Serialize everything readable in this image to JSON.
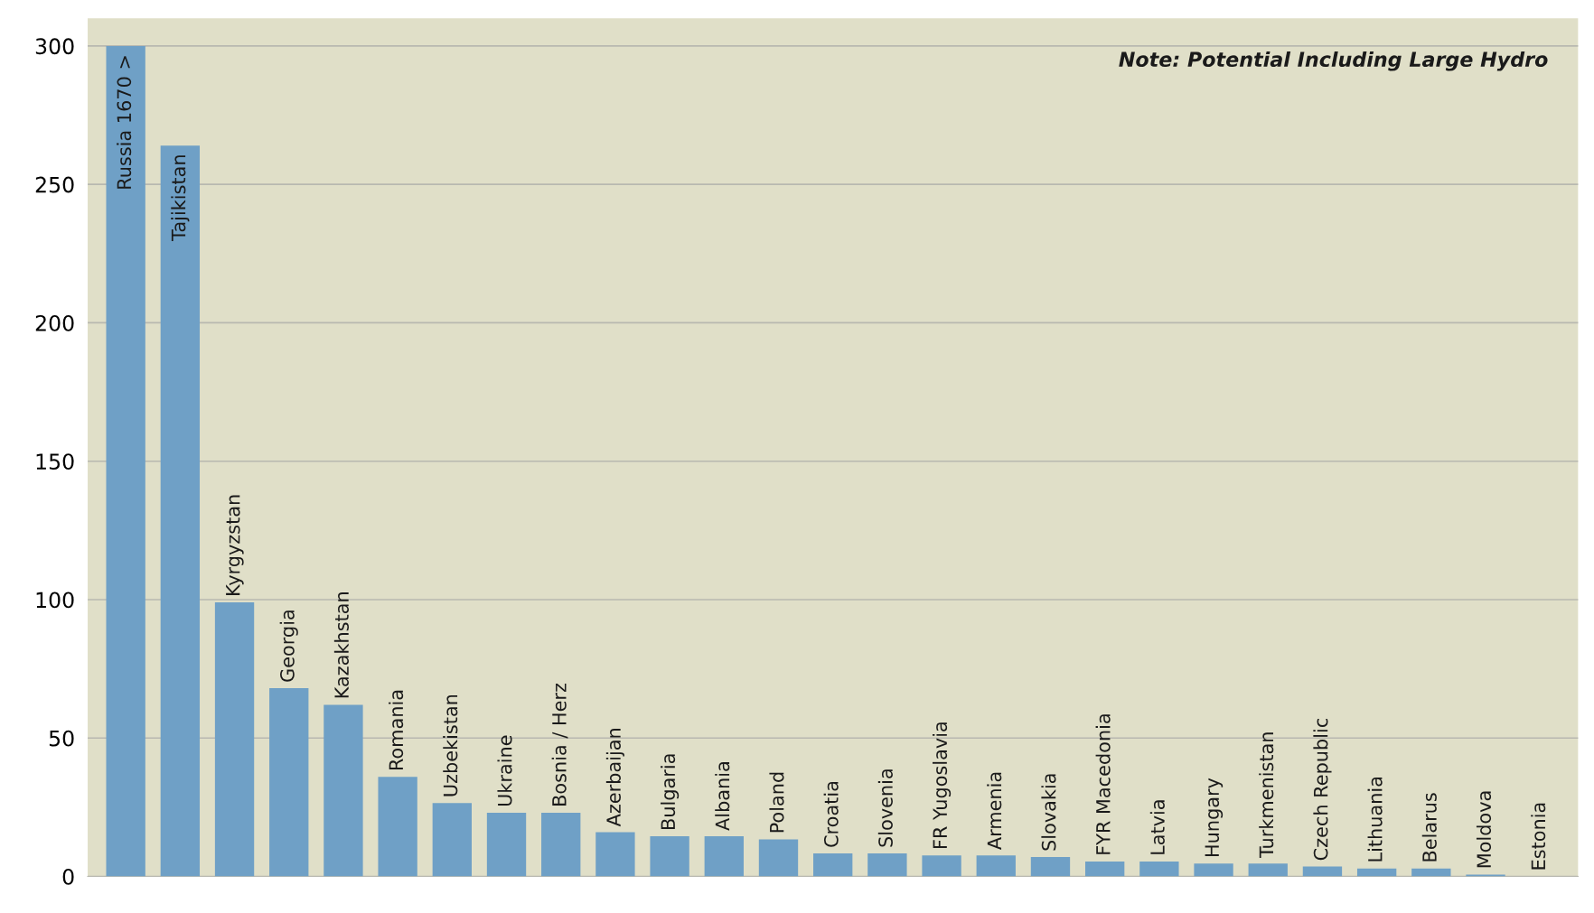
{
  "chart_data": {
    "type": "bar",
    "categories": [
      "Russia 1670 >",
      "Tajikistan",
      "Kyrgyzstan",
      "Georgia",
      "Kazakhstan",
      "Romania",
      "Uzbekistan",
      "Ukraine",
      "Bosnia / Herz",
      "Azerbaijan",
      "Bulgaria",
      "Albania",
      "Poland",
      "Croatia",
      "Slovenia",
      "FR Yugoslavia",
      "Armenia",
      "Slovakia",
      "FYR Macedonia",
      "Latvia",
      "Hungary",
      "Turkmenistan",
      "Czech Republic",
      "Lithuania",
      "Belarus",
      "Moldova",
      "Estonia"
    ],
    "values": [
      300,
      264,
      99,
      68,
      62,
      36,
      26.5,
      23,
      23,
      16,
      14.5,
      14.5,
      13.4,
      8.3,
      8.3,
      7.6,
      7.6,
      7,
      5.4,
      5.4,
      4.7,
      4.7,
      3.6,
      2.9,
      2.9,
      0.7,
      0
    ],
    "color": "#6fa0c6",
    "ylim": [
      0,
      310
    ],
    "yticks": [
      0,
      50,
      100,
      150,
      200,
      250,
      300
    ],
    "grid": "y",
    "annotations": [
      "Note: Potential Including Large Hydro"
    ]
  }
}
